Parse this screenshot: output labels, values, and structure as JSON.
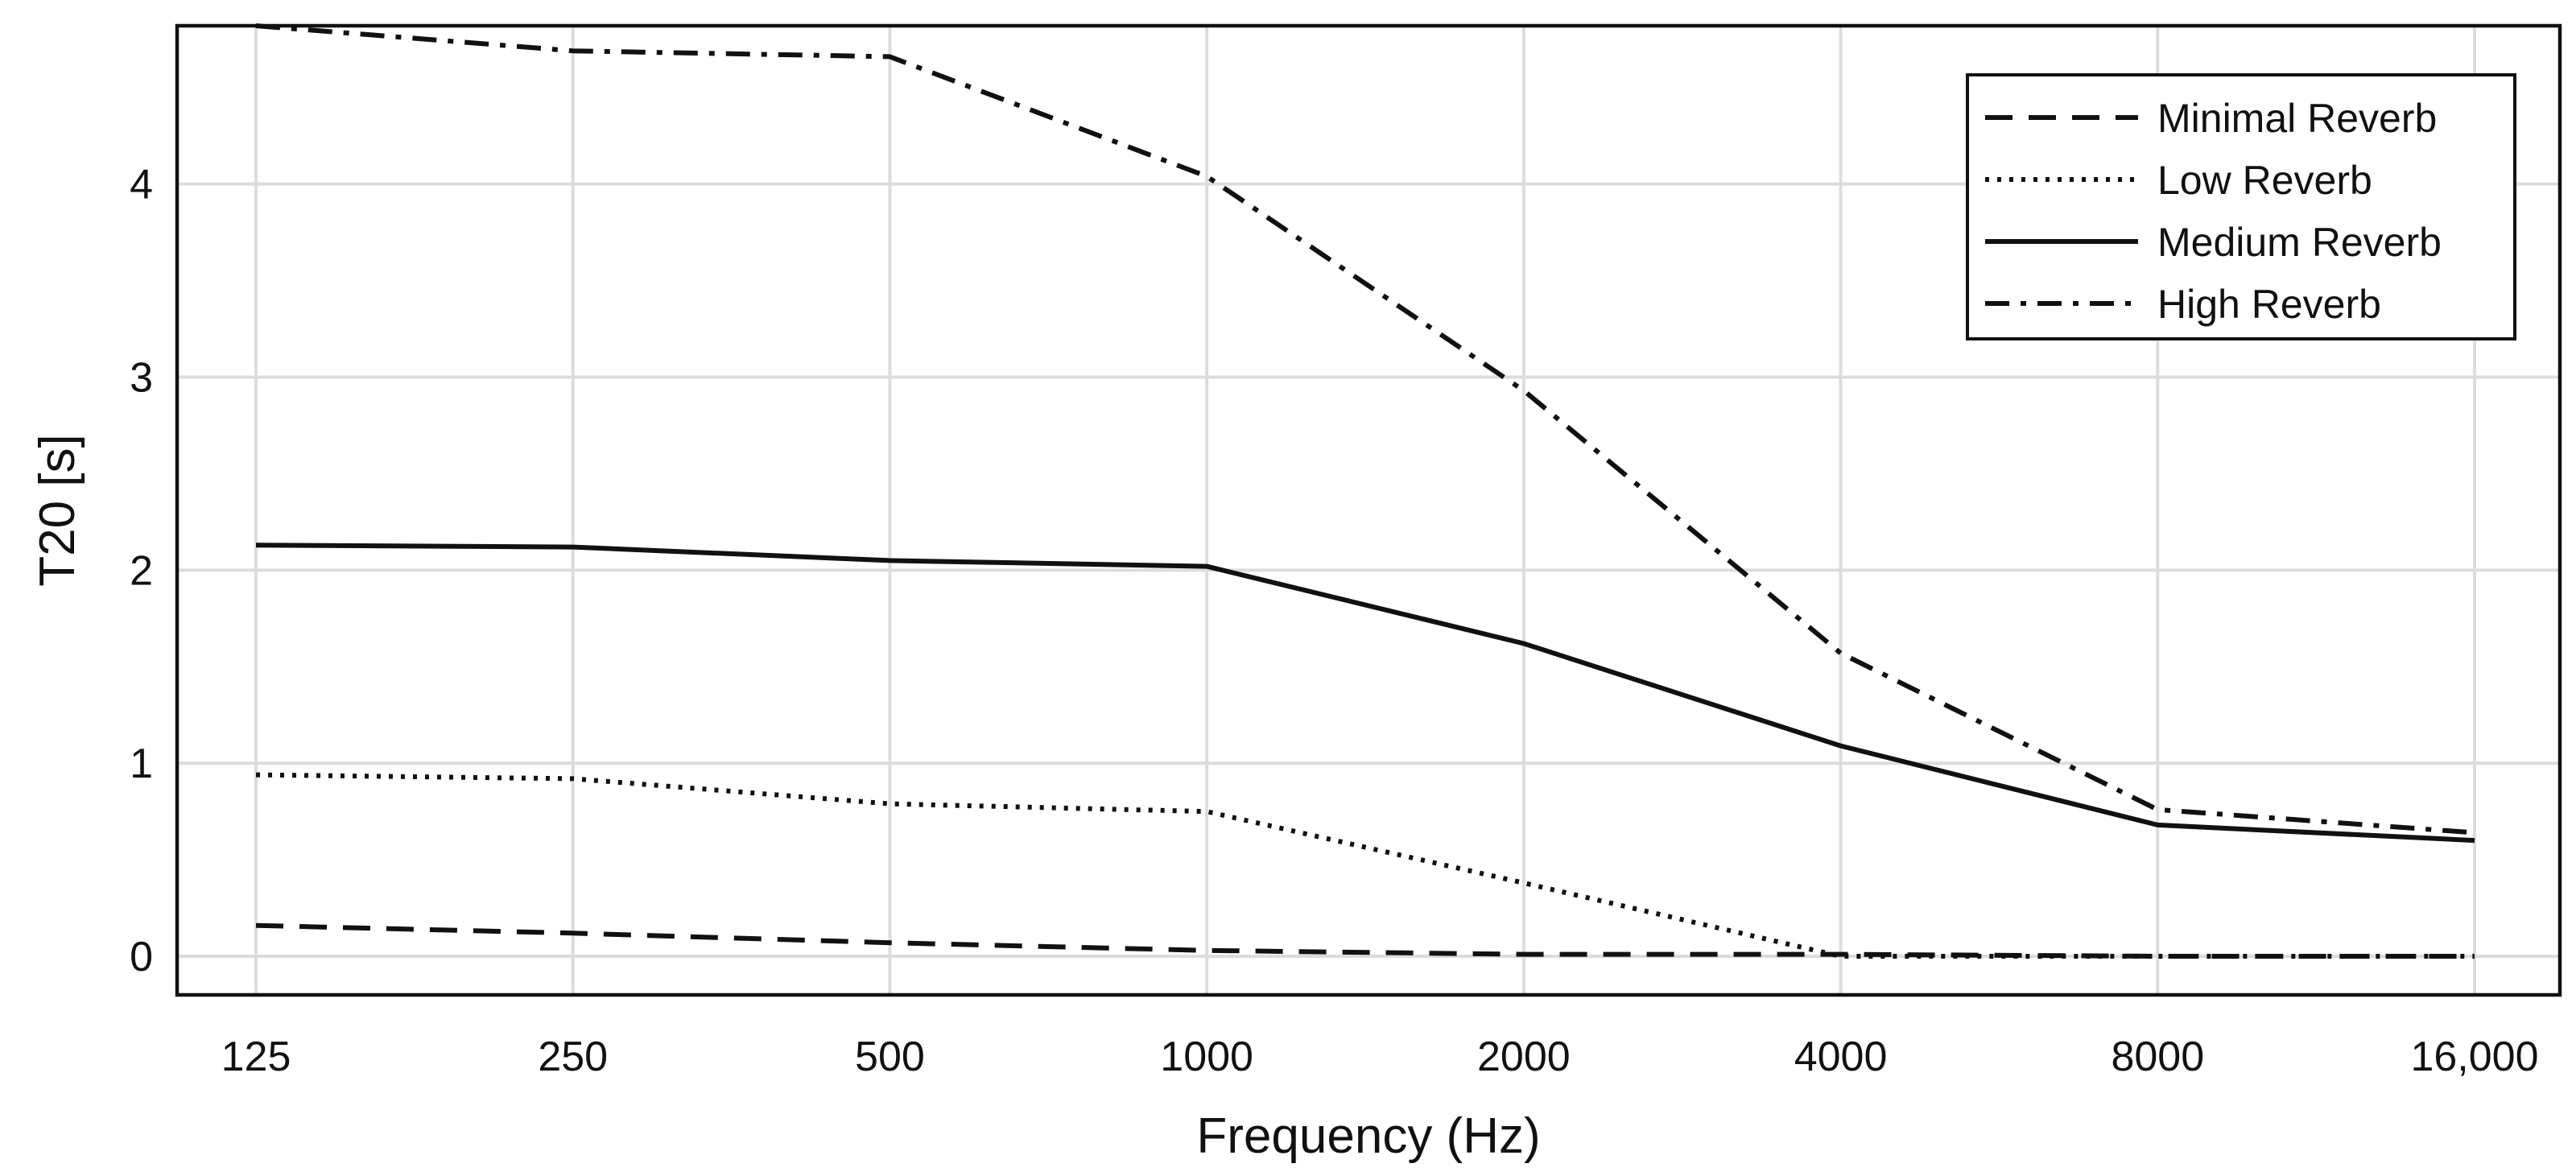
{
  "chart_data": {
    "type": "line",
    "xlabel": "Frequency (Hz)",
    "ylabel": "T20 [s]",
    "x": [
      125,
      250,
      500,
      1000,
      2000,
      4000,
      8000,
      16000
    ],
    "x_tick_labels": [
      "125",
      "250",
      "500",
      "1000",
      "2000",
      "4000",
      "8000",
      "16,000"
    ],
    "x_scale": "log2",
    "y_ticks": [
      0,
      1,
      2,
      3,
      4
    ],
    "ylim": [
      -0.2,
      4.82
    ],
    "grid": true,
    "legend_position": "top-right",
    "series": [
      {
        "name": "Minimal Reverb",
        "style": "dashed",
        "values": [
          0.16,
          0.12,
          0.07,
          0.03,
          0.01,
          0.01,
          0.0,
          0.0
        ]
      },
      {
        "name": "Low Reverb",
        "style": "dotted",
        "values": [
          0.94,
          0.92,
          0.79,
          0.75,
          0.38,
          0.0,
          0.0,
          0.0
        ]
      },
      {
        "name": "Medium Reverb",
        "style": "solid",
        "values": [
          2.13,
          2.12,
          2.05,
          2.02,
          1.62,
          1.09,
          0.68,
          0.6
        ]
      },
      {
        "name": "High Reverb",
        "style": "dashdot",
        "values": [
          4.82,
          4.69,
          4.66,
          4.04,
          2.93,
          1.57,
          0.76,
          0.64
        ]
      }
    ]
  }
}
